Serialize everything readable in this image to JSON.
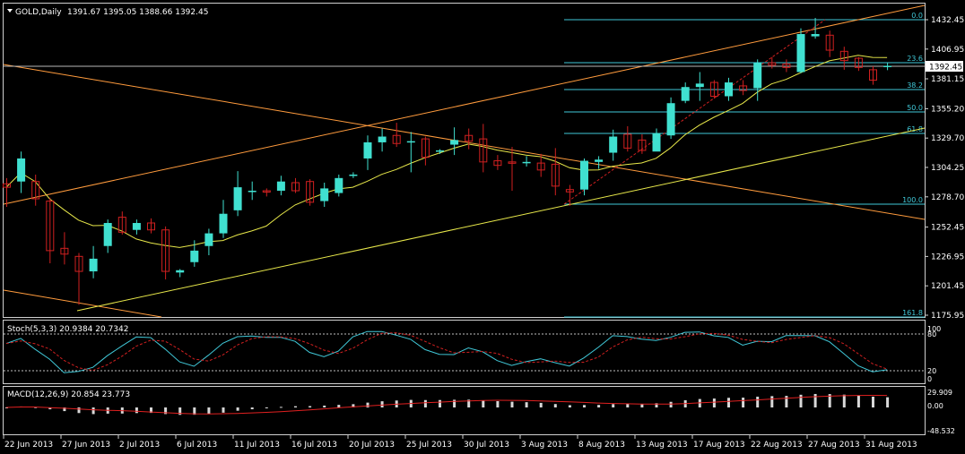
{
  "price_panel": {
    "symbol": "GOLD,Daily",
    "ohlc": "1391.67 1395.05 1388.66 1392.45",
    "current_price": "1392.45",
    "price_ticks": [
      "1432.45",
      "1406.95",
      "1381.15",
      "1355.20",
      "1329.70",
      "1304.25",
      "1278.70",
      "1252.45",
      "1226.95",
      "1201.45",
      "1175.95"
    ]
  },
  "fibonacci_levels": [
    "0.0",
    "23.6",
    "38.2",
    "50.0",
    "61.8",
    "100.0",
    "161.8"
  ],
  "stoch_panel": {
    "label": "Stoch(5,3,3) 20.9384 20.7342",
    "levels": [
      "100",
      "80",
      "20",
      "0"
    ]
  },
  "macd_panel": {
    "label": "MACD(12,26,9) 20.854 23.773",
    "ticks": [
      "29.909",
      "0.00",
      "-48.532"
    ]
  },
  "x_axis": {
    "dates": [
      "22 Jun 2013",
      "27 Jun 2013",
      "2 Jul 2013",
      "6 Jul 2013",
      "11 Jul 2013",
      "16 Jul 2013",
      "20 Jul 2013",
      "25 Jul 2013",
      "30 Jul 2013",
      "3 Aug 2013",
      "8 Aug 2013",
      "13 Aug 2013",
      "17 Aug 2013",
      "22 Aug 2013",
      "27 Aug 2013",
      "31 Aug 2013"
    ]
  },
  "colors": {
    "background": "#000000",
    "bull_candle": "#40e0d0",
    "bear_candle": "#d02020",
    "moving_average": "#e8e84a",
    "channel_line": "#ff9b3d",
    "fib_line": "#40c8d8",
    "axis_text": "#ffffff"
  },
  "chart_data": {
    "type": "candlestick",
    "title": "GOLD,Daily",
    "ylim": [
      1175.95,
      1432.45
    ],
    "candles": [
      {
        "o": 1290,
        "h": 1295,
        "l": 1270,
        "c": 1287
      },
      {
        "o": 1292,
        "h": 1318,
        "l": 1282,
        "c": 1312
      },
      {
        "o": 1292,
        "h": 1298,
        "l": 1271,
        "c": 1277
      },
      {
        "o": 1275,
        "h": 1278,
        "l": 1221,
        "c": 1232
      },
      {
        "o": 1234,
        "h": 1248,
        "l": 1220,
        "c": 1229
      },
      {
        "o": 1227,
        "h": 1230,
        "l": 1185,
        "c": 1214
      },
      {
        "o": 1214,
        "h": 1236,
        "l": 1208,
        "c": 1225
      },
      {
        "o": 1236,
        "h": 1259,
        "l": 1230,
        "c": 1256
      },
      {
        "o": 1261,
        "h": 1266,
        "l": 1246,
        "c": 1248
      },
      {
        "o": 1250,
        "h": 1259,
        "l": 1246,
        "c": 1256
      },
      {
        "o": 1256,
        "h": 1260,
        "l": 1247,
        "c": 1250
      },
      {
        "o": 1250,
        "h": 1253,
        "l": 1207,
        "c": 1214
      },
      {
        "o": 1213,
        "h": 1216,
        "l": 1209,
        "c": 1215
      },
      {
        "o": 1222,
        "h": 1241,
        "l": 1218,
        "c": 1232
      },
      {
        "o": 1236,
        "h": 1251,
        "l": 1228,
        "c": 1247
      },
      {
        "o": 1247,
        "h": 1276,
        "l": 1243,
        "c": 1264
      },
      {
        "o": 1267,
        "h": 1301,
        "l": 1262,
        "c": 1287
      },
      {
        "o": 1283,
        "h": 1292,
        "l": 1276,
        "c": 1284
      },
      {
        "o": 1284,
        "h": 1286,
        "l": 1279,
        "c": 1283
      },
      {
        "o": 1284,
        "h": 1297,
        "l": 1280,
        "c": 1292
      },
      {
        "o": 1291,
        "h": 1295,
        "l": 1282,
        "c": 1284
      },
      {
        "o": 1292,
        "h": 1294,
        "l": 1271,
        "c": 1274
      },
      {
        "o": 1275,
        "h": 1291,
        "l": 1270,
        "c": 1286
      },
      {
        "o": 1282,
        "h": 1298,
        "l": 1279,
        "c": 1295
      },
      {
        "o": 1297,
        "h": 1300,
        "l": 1295,
        "c": 1298
      },
      {
        "o": 1312,
        "h": 1332,
        "l": 1302,
        "c": 1326
      },
      {
        "o": 1326,
        "h": 1338,
        "l": 1318,
        "c": 1331
      },
      {
        "o": 1332,
        "h": 1343,
        "l": 1322,
        "c": 1325
      },
      {
        "o": 1326,
        "h": 1335,
        "l": 1300,
        "c": 1327
      },
      {
        "o": 1329,
        "h": 1331,
        "l": 1306,
        "c": 1313
      },
      {
        "o": 1318,
        "h": 1320,
        "l": 1316,
        "c": 1319
      },
      {
        "o": 1324,
        "h": 1339,
        "l": 1315,
        "c": 1328
      },
      {
        "o": 1332,
        "h": 1338,
        "l": 1320,
        "c": 1327
      },
      {
        "o": 1329,
        "h": 1342,
        "l": 1300,
        "c": 1309
      },
      {
        "o": 1310,
        "h": 1315,
        "l": 1302,
        "c": 1306
      },
      {
        "o": 1309,
        "h": 1322,
        "l": 1284,
        "c": 1308
      },
      {
        "o": 1308,
        "h": 1314,
        "l": 1305,
        "c": 1309
      },
      {
        "o": 1308,
        "h": 1316,
        "l": 1296,
        "c": 1302
      },
      {
        "o": 1307,
        "h": 1321,
        "l": 1280,
        "c": 1288
      },
      {
        "o": 1285,
        "h": 1289,
        "l": 1271,
        "c": 1283
      },
      {
        "o": 1285,
        "h": 1312,
        "l": 1280,
        "c": 1310
      },
      {
        "o": 1309,
        "h": 1314,
        "l": 1303,
        "c": 1311
      },
      {
        "o": 1317,
        "h": 1337,
        "l": 1310,
        "c": 1331
      },
      {
        "o": 1333,
        "h": 1340,
        "l": 1318,
        "c": 1321
      },
      {
        "o": 1328,
        "h": 1333,
        "l": 1316,
        "c": 1319
      },
      {
        "o": 1318,
        "h": 1338,
        "l": 1320,
        "c": 1334
      },
      {
        "o": 1332,
        "h": 1365,
        "l": 1329,
        "c": 1360
      },
      {
        "o": 1362,
        "h": 1378,
        "l": 1360,
        "c": 1374
      },
      {
        "o": 1374,
        "h": 1387,
        "l": 1362,
        "c": 1377
      },
      {
        "o": 1378,
        "h": 1380,
        "l": 1364,
        "c": 1366
      },
      {
        "o": 1366,
        "h": 1382,
        "l": 1362,
        "c": 1378
      },
      {
        "o": 1375,
        "h": 1380,
        "l": 1367,
        "c": 1371
      },
      {
        "o": 1373,
        "h": 1398,
        "l": 1362,
        "c": 1395
      },
      {
        "o": 1395,
        "h": 1400,
        "l": 1390,
        "c": 1393
      },
      {
        "o": 1394,
        "h": 1398,
        "l": 1387,
        "c": 1391
      },
      {
        "o": 1387,
        "h": 1425,
        "l": 1386,
        "c": 1420
      },
      {
        "o": 1418,
        "h": 1434,
        "l": 1416,
        "c": 1420
      },
      {
        "o": 1419,
        "h": 1423,
        "l": 1400,
        "c": 1406
      },
      {
        "o": 1405,
        "h": 1409,
        "l": 1389,
        "c": 1397
      },
      {
        "o": 1399,
        "h": 1400,
        "l": 1388,
        "c": 1391
      },
      {
        "o": 1389,
        "h": 1392,
        "l": 1376,
        "c": 1380
      },
      {
        "o": 1391.67,
        "h": 1395.05,
        "l": 1388.66,
        "c": 1392.45
      }
    ],
    "fib_retracement": {
      "0.0": 1434,
      "100.0": 1271,
      "161.8": 1175.95
    }
  }
}
